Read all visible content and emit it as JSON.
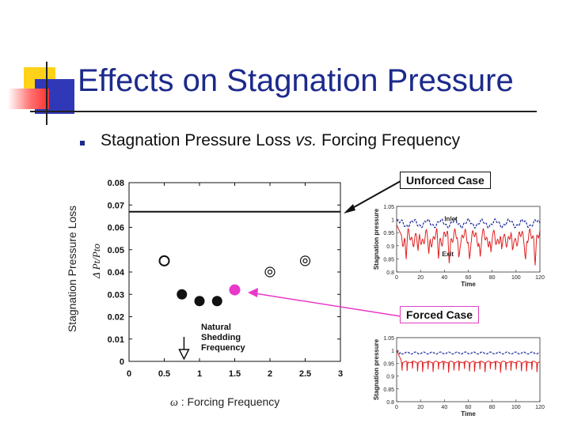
{
  "slide": {
    "title": "Effects on Stagnation Pressure",
    "bullet_text_before": "Stagnation Pressure Loss ",
    "bullet_text_em": "vs.",
    "bullet_text_after": " Forcing Frequency",
    "y_axis_title": "Stagnation Pressure Loss",
    "x_axis_symbol": "ω",
    "x_axis_title": " : Forcing Frequency",
    "unforced_label": "Unforced Case",
    "forced_label": "Forced Case",
    "natural_label": "Natural\nShedding\nFrequency"
  },
  "colors": {
    "title": "#1c2a8c",
    "forced_point": "#e838c8",
    "inlet_line": "#1a2a9a",
    "exit_line": "#e02020"
  },
  "chart_data": [
    {
      "type": "scatter",
      "ylabel": "Δ Pt/Pto",
      "xlim": [
        0,
        3
      ],
      "ylim": [
        0,
        0.08
      ],
      "x_ticks": [
        "0",
        "0.5",
        "1",
        "1.5",
        "2",
        "2.5",
        "3"
      ],
      "y_ticks": [
        "0",
        "0.01",
        "0.02",
        "0.03",
        "0.04",
        "0.05",
        "0.06",
        "0.07",
        "0.08"
      ],
      "unforced_level": 0.067,
      "natural_shedding_frequency": 0.78,
      "points": [
        {
          "x": 0.5,
          "y": 0.045,
          "style": "open-circle"
        },
        {
          "x": 0.75,
          "y": 0.03,
          "style": "filled-black"
        },
        {
          "x": 1.0,
          "y": 0.027,
          "style": "filled-black"
        },
        {
          "x": 1.25,
          "y": 0.027,
          "style": "filled-black"
        },
        {
          "x": 1.5,
          "y": 0.032,
          "style": "filled-magenta"
        },
        {
          "x": 2.0,
          "y": 0.04,
          "style": "bullseye"
        },
        {
          "x": 2.5,
          "y": 0.045,
          "style": "bullseye"
        }
      ]
    },
    {
      "type": "line",
      "title": "Unforced Case",
      "ylabel": "Stagnation pressure",
      "xlabel": "Time",
      "xlim": [
        0,
        120
      ],
      "ylim": [
        0.8,
        1.05
      ],
      "x_ticks": [
        "0",
        "20",
        "40",
        "60",
        "80",
        "100",
        "120"
      ],
      "y_ticks": [
        "0.8",
        "0.85",
        "0.9",
        "0.95",
        "1",
        "1.05"
      ],
      "series": [
        {
          "name": "Inlet",
          "mean": 0.985
        },
        {
          "name": "Exit",
          "mean": 0.93
        }
      ]
    },
    {
      "type": "line",
      "title": "Forced Case",
      "ylabel": "Stagnation pressure",
      "xlabel": "Time",
      "xlim": [
        0,
        120
      ],
      "ylim": [
        0.8,
        1.05
      ],
      "x_ticks": [
        "0",
        "20",
        "40",
        "60",
        "80",
        "100",
        "120"
      ],
      "y_ticks": [
        "0.8",
        "0.85",
        "0.9",
        "0.95",
        "1",
        "1.05"
      ],
      "series": [
        {
          "name": "",
          "mean": 0.99
        },
        {
          "name": "",
          "mean": 0.955
        }
      ]
    }
  ]
}
